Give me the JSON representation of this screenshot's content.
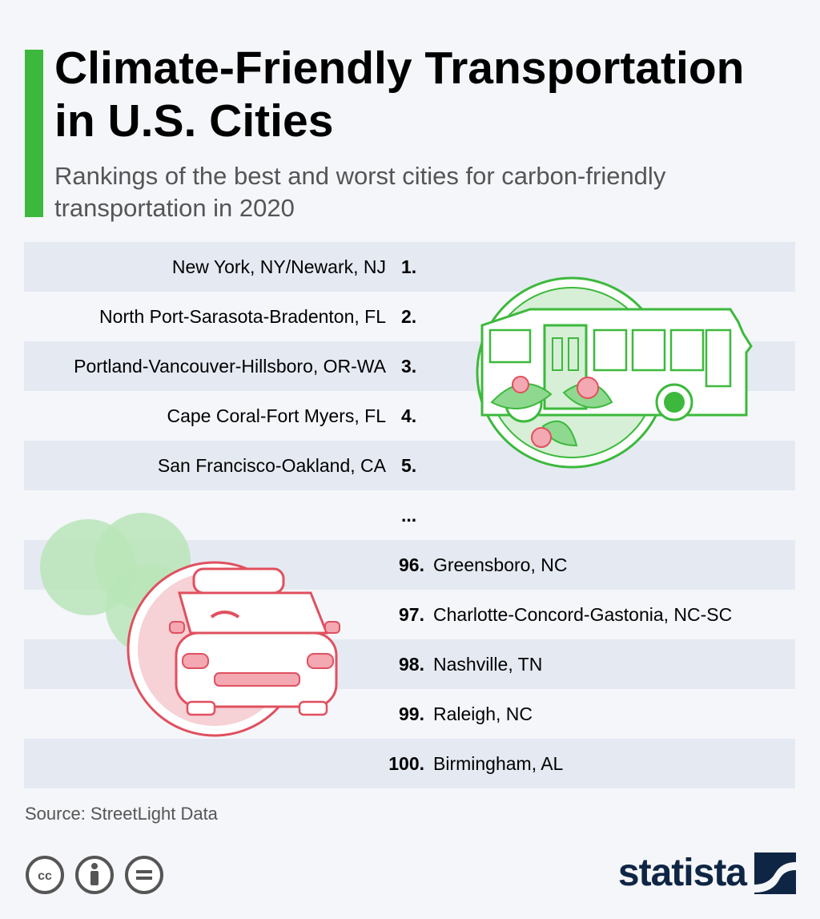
{
  "header": {
    "title": "Climate-Friendly Transportation in U.S. Cities",
    "subtitle": "Rankings of the best and worst cities for carbon-friendly transportation in 2020"
  },
  "best": [
    {
      "rank": "1.",
      "city": "New York, NY/Newark, NJ"
    },
    {
      "rank": "2.",
      "city": "North Port-Sarasota-Bradenton, FL"
    },
    {
      "rank": "3.",
      "city": "Portland-Vancouver-Hillsboro, OR-WA"
    },
    {
      "rank": "4.",
      "city": "Cape Coral-Fort Myers, FL"
    },
    {
      "rank": "5.",
      "city": "San Francisco-Oakland, CA"
    }
  ],
  "ellipsis": "...",
  "worst": [
    {
      "rank": "96.",
      "city": "Greensboro, NC"
    },
    {
      "rank": "97.",
      "city": "Charlotte-Concord-Gastonia, NC-SC"
    },
    {
      "rank": "98.",
      "city": "Nashville, TN"
    },
    {
      "rank": "99.",
      "city": "Raleigh, NC"
    },
    {
      "rank": "100.",
      "city": "Birmingham, AL"
    }
  ],
  "footer": {
    "source": "Source: StreetLight Data",
    "brand": "statista",
    "license_icons": [
      "cc-icon",
      "attribution-icon",
      "no-derivatives-icon"
    ]
  },
  "colors": {
    "accent": "#3cb93c",
    "stripe": "#e5e9f2",
    "bus_green": "#3cb93c",
    "car_red": "#e0505f",
    "brand_navy": "#0f2544"
  }
}
